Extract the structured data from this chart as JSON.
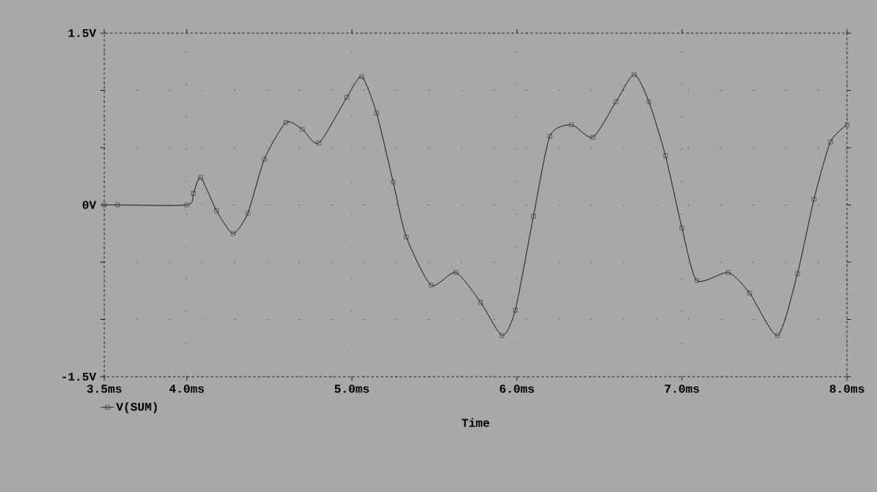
{
  "chart_data": {
    "type": "line",
    "xlabel": "Time",
    "x": [
      3.5,
      3.58,
      4.0,
      4.04,
      4.084,
      4.18,
      4.28,
      4.37,
      4.47,
      4.6,
      4.7,
      4.8,
      4.97,
      5.06,
      5.15,
      5.25,
      5.33,
      5.48,
      5.63,
      5.78,
      5.91,
      5.99,
      6.1,
      6.2,
      6.33,
      6.46,
      6.6,
      6.71,
      6.8,
      6.9,
      7.0,
      7.09,
      7.28,
      7.41,
      7.58,
      7.7,
      7.8,
      7.9,
      8.0
    ],
    "series": [
      {
        "name": "V(SUM)",
        "color": "#000000",
        "values": [
          0,
          0,
          0,
          0.1,
          0.24,
          -0.05,
          -0.25,
          -0.07,
          0.4,
          0.72,
          0.66,
          0.54,
          0.94,
          1.12,
          0.8,
          0.2,
          -0.28,
          -0.7,
          -0.59,
          -0.85,
          -1.14,
          -0.92,
          -0.1,
          0.6,
          0.7,
          0.59,
          0.9,
          1.14,
          0.9,
          0.43,
          -0.2,
          -0.66,
          -0.59,
          -0.77,
          -1.14,
          -0.6,
          0.05,
          0.55,
          0.7
        ]
      }
    ],
    "xlim": [
      3.5,
      8.0
    ],
    "xticks": [
      {
        "value": 3.5,
        "label": "3.5ms"
      },
      {
        "value": 4.0,
        "label": "4.0ms"
      },
      {
        "value": 5.0,
        "label": "5.0ms"
      },
      {
        "value": 6.0,
        "label": "6.0ms"
      },
      {
        "value": 7.0,
        "label": "7.0ms"
      },
      {
        "value": 8.0,
        "label": "8.0ms"
      }
    ],
    "ylim": [
      -1.5,
      1.5
    ],
    "yticks": [
      {
        "value": -1.5,
        "label": "-1.5V"
      },
      {
        "value": -1.0,
        "label": null
      },
      {
        "value": -0.5,
        "label": null
      },
      {
        "value": 0,
        "label": "0V"
      },
      {
        "value": 0.5,
        "label": null
      },
      {
        "value": 1.0,
        "label": null
      },
      {
        "value": 1.5,
        "label": "1.5V"
      }
    ],
    "grid": true,
    "legend": "bottom left",
    "marker": "square",
    "line_style": "solid"
  }
}
